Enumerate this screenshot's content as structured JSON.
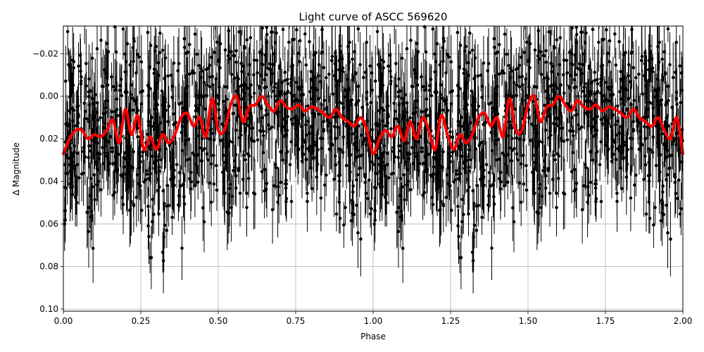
{
  "chart_data": {
    "type": "scatter",
    "title": "Light curve of ASCC 569620",
    "xlabel": "Phase",
    "ylabel": "Δ Magnitude",
    "xlim": [
      0.0,
      2.0
    ],
    "ylim": [
      0.101,
      -0.033
    ],
    "y_inverted": true,
    "grid": true,
    "x_ticks": [
      0.0,
      0.25,
      0.5,
      0.75,
      1.0,
      1.25,
      1.5,
      1.75,
      2.0
    ],
    "x_tick_labels": [
      "0.00",
      "0.25",
      "0.50",
      "0.75",
      "1.00",
      "1.25",
      "1.50",
      "1.75",
      "2.00"
    ],
    "y_ticks": [
      -0.02,
      0.0,
      0.02,
      0.04,
      0.06,
      0.08,
      0.1
    ],
    "y_tick_labels": [
      "−0.02",
      "0.00",
      "0.02",
      "0.04",
      "0.06",
      "0.08",
      "0.10"
    ],
    "series": [
      {
        "kind": "errorbar-points",
        "color": "#000000",
        "phase_period": 1.0,
        "phase": [
          0.0,
          0.04,
          0.08,
          0.12,
          0.16,
          0.2,
          0.24,
          0.28,
          0.32,
          0.36,
          0.4,
          0.44,
          0.48,
          0.52,
          0.56,
          0.6,
          0.64,
          0.68,
          0.72,
          0.76,
          0.8,
          0.84,
          0.88,
          0.92,
          0.96
        ],
        "mean_delta_magnitude": [
          0.027,
          0.016,
          0.019,
          0.018,
          0.014,
          0.015,
          0.019,
          0.023,
          0.018,
          0.016,
          0.013,
          0.012,
          0.004,
          0.011,
          0.002,
          0.01,
          0.001,
          0.006,
          0.005,
          0.005,
          0.006,
          0.008,
          0.01,
          0.014,
          0.016
        ],
        "scatter_range": 0.05,
        "typical_error": 0.012
      },
      {
        "kind": "line",
        "color": "#ff0000",
        "x": [
          0.0,
          0.02,
          0.04,
          0.06,
          0.08,
          0.1,
          0.12,
          0.14,
          0.16,
          0.18,
          0.2,
          0.22,
          0.24,
          0.26,
          0.28,
          0.3,
          0.32,
          0.34,
          0.36,
          0.38,
          0.4,
          0.42,
          0.44,
          0.46,
          0.48,
          0.5,
          0.52,
          0.54,
          0.56,
          0.58,
          0.6,
          0.62,
          0.64,
          0.66,
          0.68,
          0.7,
          0.72,
          0.74,
          0.76,
          0.78,
          0.8,
          0.82,
          0.84,
          0.86,
          0.88,
          0.9,
          0.92,
          0.94,
          0.96,
          0.98,
          1.0,
          1.02,
          1.04,
          1.06,
          1.08,
          1.1,
          1.12,
          1.14,
          1.16,
          1.18,
          1.2,
          1.22,
          1.24,
          1.26,
          1.28,
          1.3,
          1.32,
          1.34,
          1.36,
          1.38,
          1.4,
          1.42,
          1.44,
          1.46,
          1.48,
          1.5,
          1.52,
          1.54,
          1.56,
          1.58,
          1.6,
          1.62,
          1.64,
          1.66,
          1.68,
          1.7,
          1.72,
          1.74,
          1.76,
          1.78,
          1.8,
          1.82,
          1.84,
          1.86,
          1.88,
          1.9,
          1.92,
          1.94,
          1.96,
          1.98,
          2.0
        ],
        "y": [
          0.027,
          0.02,
          0.016,
          0.016,
          0.02,
          0.018,
          0.019,
          0.016,
          0.011,
          0.022,
          0.006,
          0.018,
          0.009,
          0.025,
          0.019,
          0.025,
          0.018,
          0.022,
          0.018,
          0.01,
          0.008,
          0.014,
          0.01,
          0.019,
          0.001,
          0.016,
          0.016,
          0.004,
          0.0,
          0.012,
          0.005,
          0.004,
          0.0,
          0.004,
          0.007,
          0.002,
          0.005,
          0.006,
          0.004,
          0.007,
          0.005,
          0.006,
          0.008,
          0.01,
          0.006,
          0.01,
          0.012,
          0.014,
          0.01,
          0.016,
          0.027,
          0.02,
          0.016,
          0.019,
          0.014,
          0.021,
          0.012,
          0.02,
          0.01,
          0.016,
          0.025,
          0.009,
          0.018,
          0.025,
          0.018,
          0.022,
          0.018,
          0.01,
          0.008,
          0.014,
          0.01,
          0.019,
          0.001,
          0.016,
          0.016,
          0.004,
          0.0,
          0.012,
          0.005,
          0.004,
          0.0,
          0.004,
          0.007,
          0.002,
          0.005,
          0.006,
          0.004,
          0.007,
          0.005,
          0.006,
          0.008,
          0.01,
          0.006,
          0.01,
          0.012,
          0.014,
          0.01,
          0.016,
          0.02,
          0.01,
          0.027
        ]
      }
    ]
  }
}
